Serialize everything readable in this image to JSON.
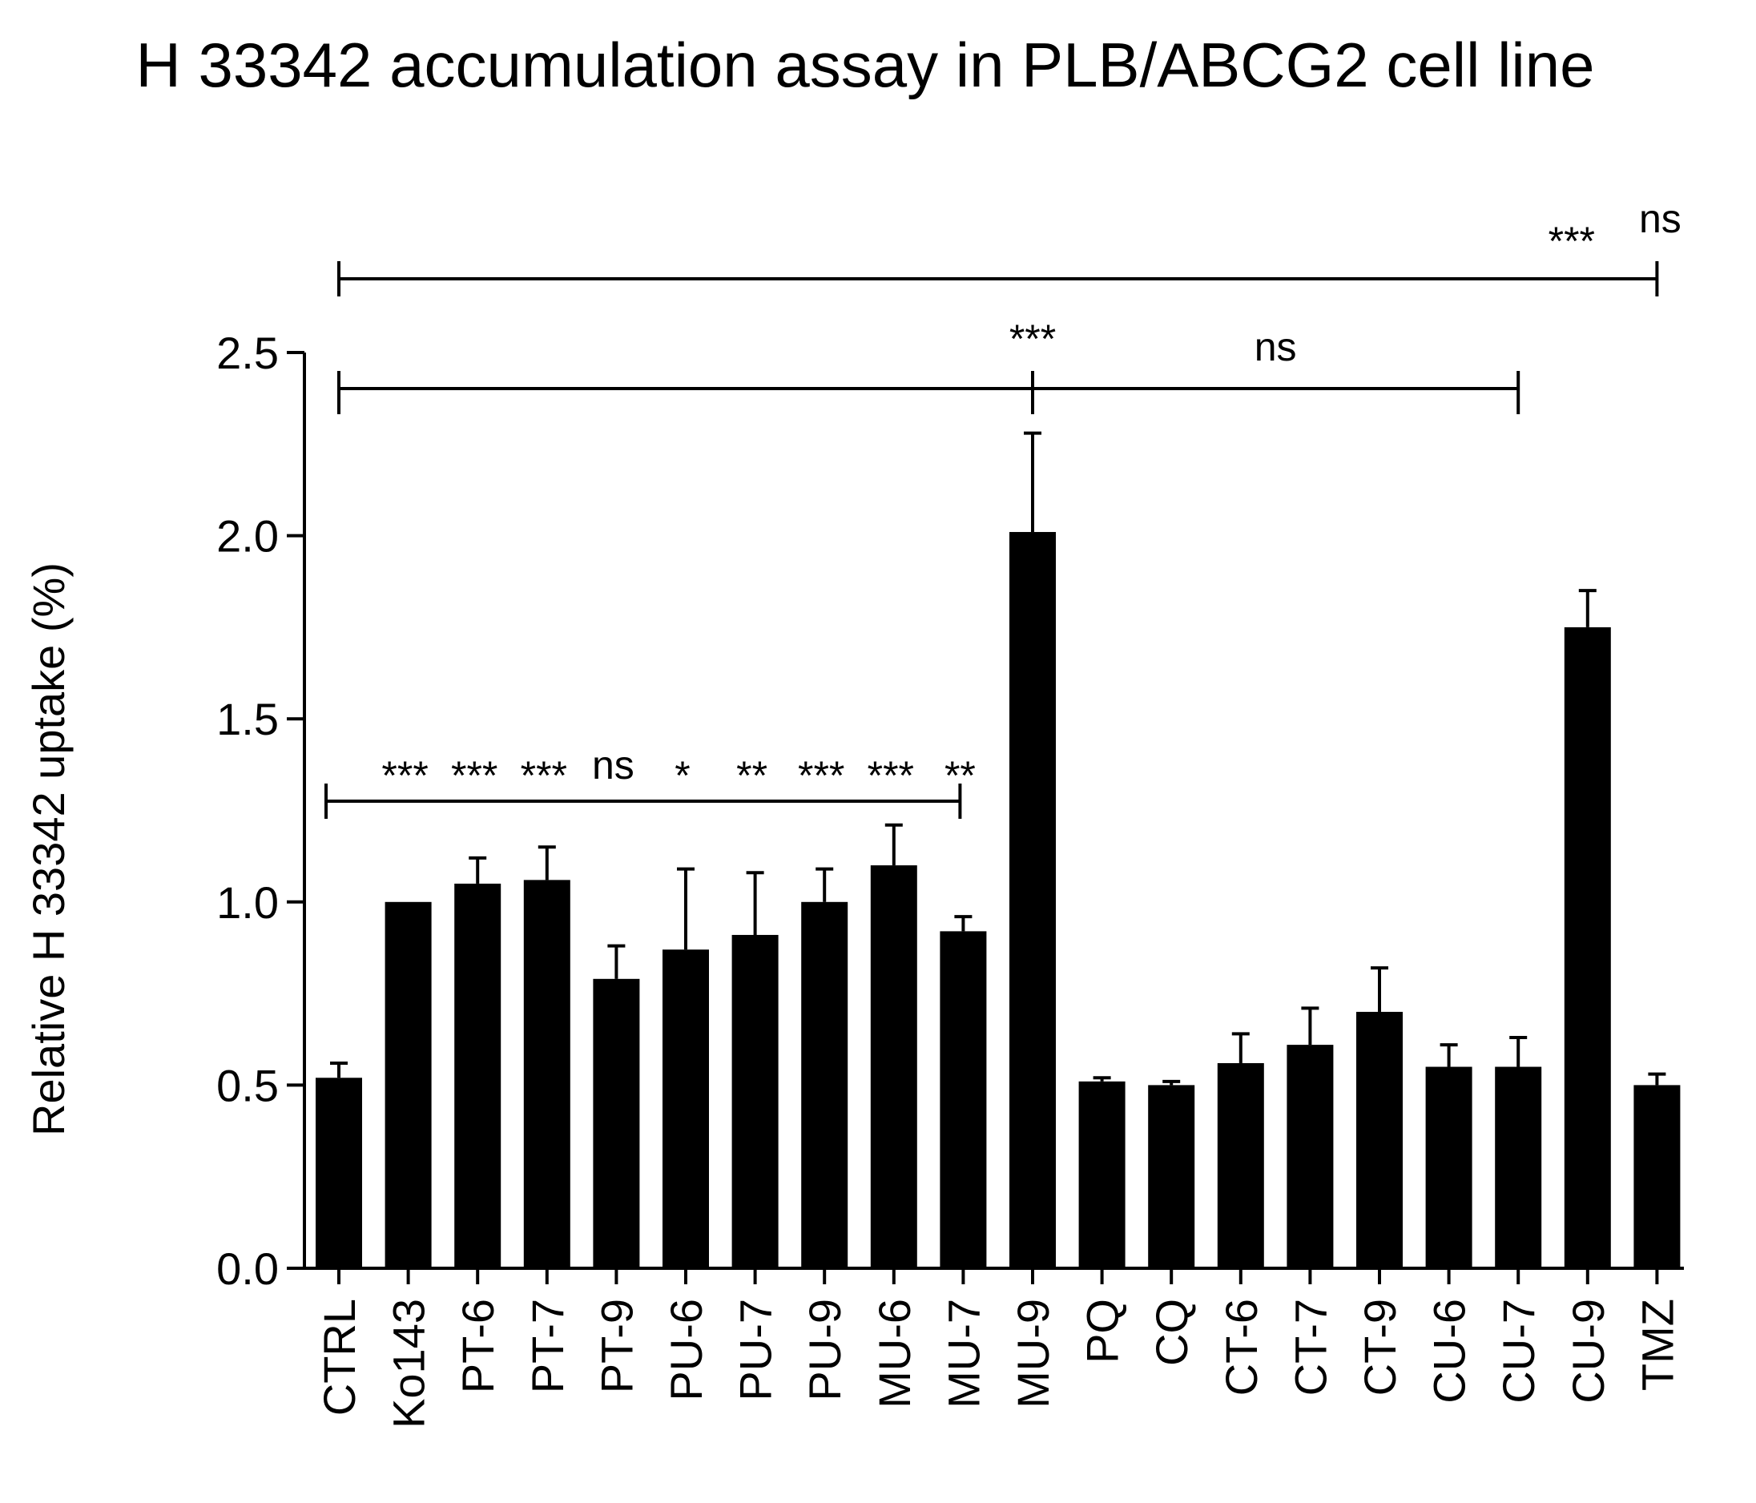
{
  "chart_data": {
    "type": "bar",
    "title": "H 33342 accumulation assay in PLB/ABCG2 cell line",
    "ylabel": "Relative H 33342 uptake (%)",
    "xlabel": "",
    "ylim": [
      0,
      2.5
    ],
    "yticks": [
      "0.0",
      "0.5",
      "1.0",
      "1.5",
      "2.0",
      "2.5"
    ],
    "grid": false,
    "categories": [
      "CTRL",
      "Ko143",
      "PT-6",
      "PT-7",
      "PT-9",
      "PU-6",
      "PU-7",
      "PU-9",
      "MU-6",
      "MU-7",
      "MU-9",
      "PQ",
      "CQ",
      "CT-6",
      "CT-7",
      "CT-9",
      "CU-6",
      "CU-7",
      "CU-9",
      "TMZ"
    ],
    "values": [
      0.52,
      1.0,
      1.05,
      1.06,
      0.79,
      0.87,
      0.91,
      1.0,
      1.1,
      0.92,
      2.01,
      0.51,
      0.5,
      0.56,
      0.61,
      0.7,
      0.55,
      0.55,
      1.75,
      0.5
    ],
    "errors": [
      0.04,
      0.0,
      0.07,
      0.09,
      0.09,
      0.22,
      0.17,
      0.09,
      0.11,
      0.04,
      0.27,
      0.01,
      0.01,
      0.08,
      0.1,
      0.12,
      0.06,
      0.08,
      0.1,
      0.03
    ],
    "bar_color": "#000000",
    "annotations": {
      "comparison_1": {
        "from": "CTRL",
        "to": "MU-7",
        "labels": [
          "***",
          "***",
          "***",
          "ns",
          "*",
          "**",
          "***",
          "***",
          "**"
        ],
        "label_categories": [
          "Ko143",
          "PT-6",
          "PT-7",
          "PT-9",
          "PU-6",
          "PU-7",
          "PU-9",
          "MU-6",
          "MU-7"
        ]
      },
      "comparison_2": {
        "from": "CTRL",
        "mid": "MU-9",
        "to": "CU-7",
        "left_label": "***",
        "right_label": "ns"
      },
      "comparison_3": {
        "from": "CTRL",
        "to": "TMZ",
        "labels": [
          "***",
          "ns"
        ]
      }
    }
  }
}
